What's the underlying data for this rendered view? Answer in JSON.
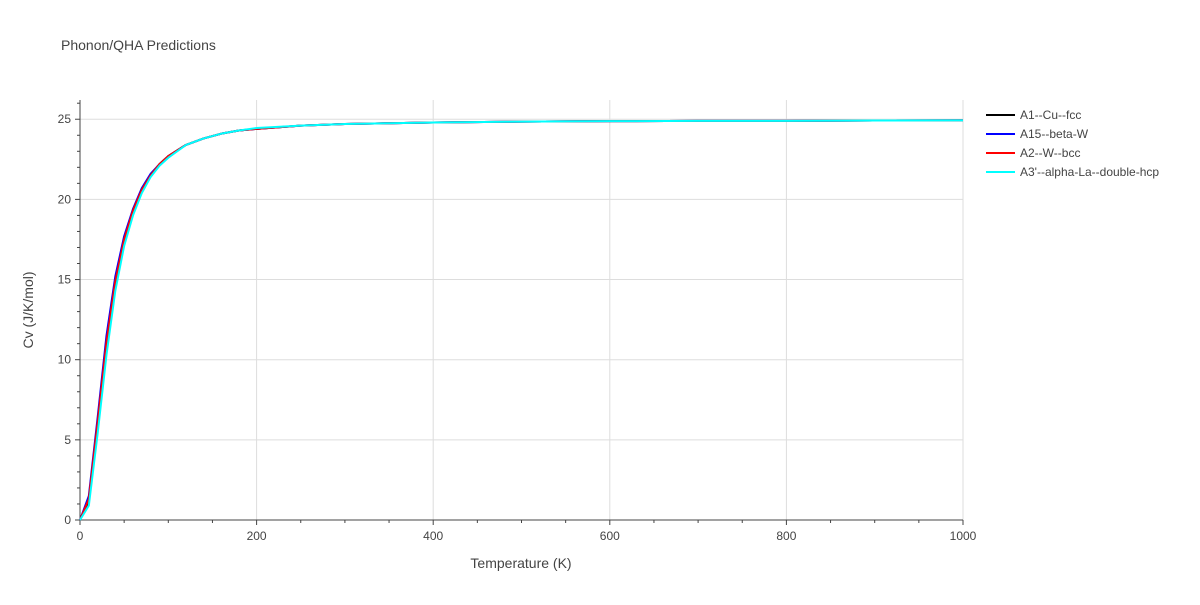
{
  "chart_data": {
    "type": "line",
    "title": "Phonon/QHA Predictions",
    "xlabel": "Temperature (K)",
    "ylabel": "Cv (J/K/mol)",
    "xlim": [
      0,
      1000
    ],
    "ylim": [
      0,
      26.2
    ],
    "x_ticks": [
      0,
      200,
      400,
      600,
      800,
      1000
    ],
    "y_ticks": [
      0,
      5,
      10,
      15,
      20,
      25
    ],
    "grid": true,
    "legend_position": "top-right, outside plot",
    "series": [
      {
        "name": "A1--Cu--fcc",
        "color": "#000000",
        "x": [
          0,
          10,
          20,
          30,
          40,
          50,
          60,
          70,
          80,
          90,
          100,
          120,
          140,
          160,
          180,
          200,
          250,
          300,
          400,
          500,
          600,
          700,
          800,
          900,
          1000
        ],
        "y": [
          0,
          1.2,
          5.9,
          10.9,
          14.8,
          17.5,
          19.3,
          20.6,
          21.5,
          22.2,
          22.7,
          23.4,
          23.8,
          24.1,
          24.3,
          24.4,
          24.6,
          24.7,
          24.8,
          24.85,
          24.88,
          24.9,
          24.9,
          24.92,
          24.93
        ]
      },
      {
        "name": "A15--beta-W",
        "color": "#0000ff",
        "x": [
          0,
          10,
          20,
          30,
          40,
          50,
          60,
          70,
          80,
          90,
          100,
          120,
          140,
          160,
          180,
          200,
          250,
          300,
          400,
          500,
          600,
          700,
          800,
          900,
          1000
        ],
        "y": [
          0,
          1.5,
          6.4,
          11.5,
          15.2,
          17.7,
          19.4,
          20.7,
          21.6,
          22.2,
          22.7,
          23.4,
          23.8,
          24.1,
          24.3,
          24.4,
          24.6,
          24.7,
          24.8,
          24.85,
          24.88,
          24.9,
          24.9,
          24.92,
          24.93
        ]
      },
      {
        "name": "A2--W--bcc",
        "color": "#ff0000",
        "x": [
          0,
          10,
          20,
          30,
          40,
          50,
          60,
          70,
          80,
          90,
          100,
          120,
          140,
          160,
          180,
          200,
          250,
          300,
          400,
          500,
          600,
          700,
          800,
          900,
          1000
        ],
        "y": [
          0,
          1.3,
          6.1,
          11.1,
          14.9,
          17.5,
          19.3,
          20.6,
          21.5,
          22.2,
          22.7,
          23.4,
          23.8,
          24.1,
          24.3,
          24.4,
          24.6,
          24.7,
          24.8,
          24.85,
          24.88,
          24.9,
          24.9,
          24.92,
          24.93
        ]
      },
      {
        "name": "A3'--alpha-La--double-hcp",
        "color": "#00ffff",
        "x": [
          0,
          10,
          20,
          30,
          40,
          50,
          60,
          70,
          80,
          90,
          100,
          120,
          140,
          160,
          180,
          200,
          250,
          300,
          400,
          500,
          600,
          700,
          800,
          900,
          1000
        ],
        "y": [
          0,
          0.9,
          5.4,
          10.3,
          14.3,
          17.1,
          19.0,
          20.4,
          21.4,
          22.1,
          22.6,
          23.4,
          23.8,
          24.1,
          24.3,
          24.45,
          24.6,
          24.7,
          24.8,
          24.85,
          24.88,
          24.9,
          24.9,
          24.92,
          24.93
        ]
      }
    ]
  }
}
